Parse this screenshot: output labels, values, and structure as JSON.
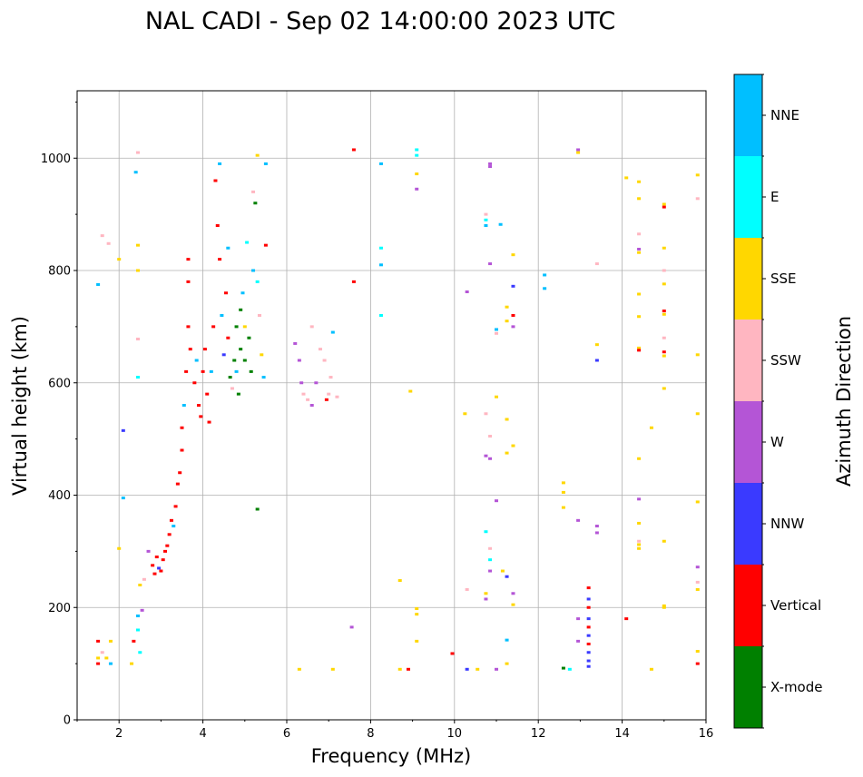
{
  "chart_data": {
    "type": "scatter",
    "title": "NAL CADI - Sep 02 14:00:00 2023 UTC",
    "xlabel": "Frequency (MHz)",
    "ylabel": "Virtual height (km)",
    "xlim": [
      1,
      16
    ],
    "ylim": [
      0,
      1120
    ],
    "xticks": [
      2,
      4,
      6,
      8,
      10,
      12,
      14,
      16
    ],
    "yticks": [
      0,
      200,
      400,
      600,
      800,
      1000
    ],
    "grid": true,
    "colorbar": {
      "label": "Azimuth Direction",
      "categories": [
        {
          "name": "X-mode",
          "color": "#008000"
        },
        {
          "name": "Vertical",
          "color": "#ff0000"
        },
        {
          "name": "NNW",
          "color": "#3a3aff"
        },
        {
          "name": "W",
          "color": "#b455d6"
        },
        {
          "name": "SSW",
          "color": "#ffb6c1"
        },
        {
          "name": "SSE",
          "color": "#ffd700"
        },
        {
          "name": "E",
          "color": "#00ffff"
        },
        {
          "name": "NNE",
          "color": "#00bfff"
        }
      ]
    },
    "points": [
      {
        "f": 1.5,
        "h": 100,
        "c": "Vertical"
      },
      {
        "f": 1.5,
        "h": 110,
        "c": "SSE"
      },
      {
        "f": 1.5,
        "h": 140,
        "c": "Vertical"
      },
      {
        "f": 1.6,
        "h": 120,
        "c": "SSW"
      },
      {
        "f": 1.7,
        "h": 110,
        "c": "SSE"
      },
      {
        "f": 1.8,
        "h": 140,
        "c": "SSE"
      },
      {
        "f": 1.8,
        "h": 100,
        "c": "NNE"
      },
      {
        "f": 1.5,
        "h": 775,
        "c": "NNE"
      },
      {
        "f": 1.6,
        "h": 862,
        "c": "SSW"
      },
      {
        "f": 1.75,
        "h": 848,
        "c": "SSW"
      },
      {
        "f": 2.0,
        "h": 820,
        "c": "SSE"
      },
      {
        "f": 2.0,
        "h": 305,
        "c": "SSE"
      },
      {
        "f": 2.1,
        "h": 395,
        "c": "NNE"
      },
      {
        "f": 2.1,
        "h": 515,
        "c": "NNW"
      },
      {
        "f": 2.3,
        "h": 100,
        "c": "SSE"
      },
      {
        "f": 2.35,
        "h": 140,
        "c": "Vertical"
      },
      {
        "f": 2.45,
        "h": 160,
        "c": "E"
      },
      {
        "f": 2.45,
        "h": 185,
        "c": "NNE"
      },
      {
        "f": 2.5,
        "h": 120,
        "c": "E"
      },
      {
        "f": 2.45,
        "h": 1010,
        "c": "SSW"
      },
      {
        "f": 2.4,
        "h": 975,
        "c": "NNE"
      },
      {
        "f": 2.45,
        "h": 845,
        "c": "SSE"
      },
      {
        "f": 2.45,
        "h": 800,
        "c": "SSE"
      },
      {
        "f": 2.45,
        "h": 678,
        "c": "SSW"
      },
      {
        "f": 2.45,
        "h": 610,
        "c": "E"
      },
      {
        "f": 2.5,
        "h": 240,
        "c": "SSE"
      },
      {
        "f": 2.55,
        "h": 195,
        "c": "W"
      },
      {
        "f": 2.6,
        "h": 250,
        "c": "SSW"
      },
      {
        "f": 2.7,
        "h": 300,
        "c": "W"
      },
      {
        "f": 2.8,
        "h": 275,
        "c": "Vertical"
      },
      {
        "f": 2.85,
        "h": 260,
        "c": "Vertical"
      },
      {
        "f": 2.9,
        "h": 290,
        "c": "Vertical"
      },
      {
        "f": 2.95,
        "h": 270,
        "c": "NNW"
      },
      {
        "f": 3.0,
        "h": 265,
        "c": "Vertical"
      },
      {
        "f": 3.05,
        "h": 285,
        "c": "Vertical"
      },
      {
        "f": 3.1,
        "h": 300,
        "c": "Vertical"
      },
      {
        "f": 3.15,
        "h": 310,
        "c": "Vertical"
      },
      {
        "f": 3.2,
        "h": 330,
        "c": "Vertical"
      },
      {
        "f": 3.25,
        "h": 355,
        "c": "Vertical"
      },
      {
        "f": 3.3,
        "h": 345,
        "c": "NNE"
      },
      {
        "f": 3.35,
        "h": 380,
        "c": "Vertical"
      },
      {
        "f": 3.4,
        "h": 420,
        "c": "Vertical"
      },
      {
        "f": 3.45,
        "h": 440,
        "c": "Vertical"
      },
      {
        "f": 3.5,
        "h": 480,
        "c": "Vertical"
      },
      {
        "f": 3.5,
        "h": 520,
        "c": "Vertical"
      },
      {
        "f": 3.55,
        "h": 560,
        "c": "NNE"
      },
      {
        "f": 3.6,
        "h": 620,
        "c": "Vertical"
      },
      {
        "f": 3.65,
        "h": 700,
        "c": "Vertical"
      },
      {
        "f": 3.65,
        "h": 780,
        "c": "Vertical"
      },
      {
        "f": 3.65,
        "h": 820,
        "c": "Vertical"
      },
      {
        "f": 3.7,
        "h": 660,
        "c": "Vertical"
      },
      {
        "f": 3.8,
        "h": 600,
        "c": "Vertical"
      },
      {
        "f": 3.85,
        "h": 640,
        "c": "NNE"
      },
      {
        "f": 3.9,
        "h": 560,
        "c": "Vertical"
      },
      {
        "f": 3.95,
        "h": 540,
        "c": "Vertical"
      },
      {
        "f": 4.0,
        "h": 620,
        "c": "Vertical"
      },
      {
        "f": 4.05,
        "h": 660,
        "c": "Vertical"
      },
      {
        "f": 4.1,
        "h": 580,
        "c": "Vertical"
      },
      {
        "f": 4.15,
        "h": 530,
        "c": "Vertical"
      },
      {
        "f": 4.2,
        "h": 620,
        "c": "NNE"
      },
      {
        "f": 4.25,
        "h": 700,
        "c": "Vertical"
      },
      {
        "f": 4.3,
        "h": 960,
        "c": "Vertical"
      },
      {
        "f": 4.35,
        "h": 880,
        "c": "Vertical"
      },
      {
        "f": 4.4,
        "h": 990,
        "c": "NNE"
      },
      {
        "f": 4.4,
        "h": 820,
        "c": "Vertical"
      },
      {
        "f": 4.45,
        "h": 720,
        "c": "NNE"
      },
      {
        "f": 4.5,
        "h": 650,
        "c": "NNW"
      },
      {
        "f": 4.55,
        "h": 760,
        "c": "Vertical"
      },
      {
        "f": 4.6,
        "h": 680,
        "c": "Vertical"
      },
      {
        "f": 4.6,
        "h": 840,
        "c": "NNE"
      },
      {
        "f": 4.65,
        "h": 610,
        "c": "X-mode"
      },
      {
        "f": 4.7,
        "h": 590,
        "c": "SSW"
      },
      {
        "f": 4.75,
        "h": 640,
        "c": "X-mode"
      },
      {
        "f": 4.8,
        "h": 700,
        "c": "X-mode"
      },
      {
        "f": 4.8,
        "h": 620,
        "c": "NNE"
      },
      {
        "f": 4.85,
        "h": 580,
        "c": "X-mode"
      },
      {
        "f": 4.9,
        "h": 730,
        "c": "X-mode"
      },
      {
        "f": 4.9,
        "h": 660,
        "c": "X-mode"
      },
      {
        "f": 4.95,
        "h": 760,
        "c": "NNE"
      },
      {
        "f": 5.0,
        "h": 640,
        "c": "X-mode"
      },
      {
        "f": 5.0,
        "h": 700,
        "c": "SSE"
      },
      {
        "f": 5.05,
        "h": 850,
        "c": "E"
      },
      {
        "f": 5.1,
        "h": 680,
        "c": "X-mode"
      },
      {
        "f": 5.15,
        "h": 620,
        "c": "X-mode"
      },
      {
        "f": 5.2,
        "h": 800,
        "c": "NNE"
      },
      {
        "f": 5.2,
        "h": 940,
        "c": "SSW"
      },
      {
        "f": 5.25,
        "h": 920,
        "c": "X-mode"
      },
      {
        "f": 5.3,
        "h": 780,
        "c": "E"
      },
      {
        "f": 5.3,
        "h": 1005,
        "c": "SSE"
      },
      {
        "f": 5.35,
        "h": 720,
        "c": "SSW"
      },
      {
        "f": 5.4,
        "h": 650,
        "c": "SSE"
      },
      {
        "f": 5.45,
        "h": 610,
        "c": "NNE"
      },
      {
        "f": 5.5,
        "h": 990,
        "c": "NNE"
      },
      {
        "f": 5.5,
        "h": 845,
        "c": "Vertical"
      },
      {
        "f": 5.3,
        "h": 375,
        "c": "X-mode"
      },
      {
        "f": 6.2,
        "h": 670,
        "c": "W"
      },
      {
        "f": 6.3,
        "h": 640,
        "c": "W"
      },
      {
        "f": 6.35,
        "h": 600,
        "c": "W"
      },
      {
        "f": 6.4,
        "h": 580,
        "c": "SSW"
      },
      {
        "f": 6.5,
        "h": 570,
        "c": "SSW"
      },
      {
        "f": 6.6,
        "h": 700,
        "c": "SSW"
      },
      {
        "f": 6.7,
        "h": 600,
        "c": "W"
      },
      {
        "f": 6.8,
        "h": 660,
        "c": "SSW"
      },
      {
        "f": 6.9,
        "h": 640,
        "c": "SSW"
      },
      {
        "f": 7.0,
        "h": 580,
        "c": "SSW"
      },
      {
        "f": 7.05,
        "h": 610,
        "c": "SSW"
      },
      {
        "f": 7.1,
        "h": 690,
        "c": "NNE"
      },
      {
        "f": 7.2,
        "h": 575,
        "c": "SSW"
      },
      {
        "f": 6.6,
        "h": 560,
        "c": "W"
      },
      {
        "f": 6.95,
        "h": 570,
        "c": "Vertical"
      },
      {
        "f": 7.1,
        "h": 90,
        "c": "SSE"
      },
      {
        "f": 6.3,
        "h": 90,
        "c": "SSE"
      },
      {
        "f": 7.55,
        "h": 165,
        "c": "W"
      },
      {
        "f": 7.6,
        "h": 1015,
        "c": "Vertical"
      },
      {
        "f": 7.6,
        "h": 780,
        "c": "Vertical"
      },
      {
        "f": 8.25,
        "h": 990,
        "c": "NNE"
      },
      {
        "f": 8.25,
        "h": 840,
        "c": "E"
      },
      {
        "f": 8.25,
        "h": 810,
        "c": "NNE"
      },
      {
        "f": 8.25,
        "h": 720,
        "c": "E"
      },
      {
        "f": 8.7,
        "h": 248,
        "c": "SSE"
      },
      {
        "f": 8.7,
        "h": 90,
        "c": "SSE"
      },
      {
        "f": 8.9,
        "h": 90,
        "c": "Vertical"
      },
      {
        "f": 8.95,
        "h": 585,
        "c": "SSE"
      },
      {
        "f": 9.1,
        "h": 1015,
        "c": "E"
      },
      {
        "f": 9.1,
        "h": 1005,
        "c": "E"
      },
      {
        "f": 9.1,
        "h": 972,
        "c": "SSE"
      },
      {
        "f": 9.1,
        "h": 945,
        "c": "W"
      },
      {
        "f": 9.1,
        "h": 198,
        "c": "SSE"
      },
      {
        "f": 9.1,
        "h": 188,
        "c": "SSE"
      },
      {
        "f": 9.1,
        "h": 140,
        "c": "SSE"
      },
      {
        "f": 9.95,
        "h": 118,
        "c": "Vertical"
      },
      {
        "f": 10.25,
        "h": 545,
        "c": "SSE"
      },
      {
        "f": 10.3,
        "h": 232,
        "c": "SSW"
      },
      {
        "f": 10.3,
        "h": 90,
        "c": "NNW"
      },
      {
        "f": 10.3,
        "h": 762,
        "c": "W"
      },
      {
        "f": 10.55,
        "h": 90,
        "c": "SSE"
      },
      {
        "f": 10.75,
        "h": 900,
        "c": "SSW"
      },
      {
        "f": 10.75,
        "h": 890,
        "c": "E"
      },
      {
        "f": 10.75,
        "h": 880,
        "c": "NNE"
      },
      {
        "f": 10.75,
        "h": 545,
        "c": "SSW"
      },
      {
        "f": 10.75,
        "h": 470,
        "c": "W"
      },
      {
        "f": 10.75,
        "h": 335,
        "c": "E"
      },
      {
        "f": 10.75,
        "h": 225,
        "c": "SSE"
      },
      {
        "f": 10.75,
        "h": 215,
        "c": "W"
      },
      {
        "f": 10.85,
        "h": 990,
        "c": "W"
      },
      {
        "f": 10.85,
        "h": 985,
        "c": "W"
      },
      {
        "f": 10.85,
        "h": 812,
        "c": "W"
      },
      {
        "f": 10.85,
        "h": 505,
        "c": "SSW"
      },
      {
        "f": 10.85,
        "h": 465,
        "c": "W"
      },
      {
        "f": 10.85,
        "h": 305,
        "c": "SSW"
      },
      {
        "f": 10.85,
        "h": 285,
        "c": "E"
      },
      {
        "f": 10.85,
        "h": 265,
        "c": "W"
      },
      {
        "f": 11.0,
        "h": 695,
        "c": "NNE"
      },
      {
        "f": 11.0,
        "h": 688,
        "c": "SSW"
      },
      {
        "f": 11.0,
        "h": 575,
        "c": "SSE"
      },
      {
        "f": 11.0,
        "h": 390,
        "c": "W"
      },
      {
        "f": 11.0,
        "h": 90,
        "c": "W"
      },
      {
        "f": 11.1,
        "h": 882,
        "c": "NNE"
      },
      {
        "f": 11.15,
        "h": 265,
        "c": "SSE"
      },
      {
        "f": 11.25,
        "h": 735,
        "c": "SSE"
      },
      {
        "f": 11.25,
        "h": 710,
        "c": "SSE"
      },
      {
        "f": 11.25,
        "h": 535,
        "c": "SSE"
      },
      {
        "f": 11.25,
        "h": 475,
        "c": "SSE"
      },
      {
        "f": 11.25,
        "h": 255,
        "c": "NNW"
      },
      {
        "f": 11.25,
        "h": 142,
        "c": "NNE"
      },
      {
        "f": 11.25,
        "h": 100,
        "c": "SSE"
      },
      {
        "f": 11.4,
        "h": 828,
        "c": "SSE"
      },
      {
        "f": 11.4,
        "h": 772,
        "c": "NNW"
      },
      {
        "f": 11.4,
        "h": 720,
        "c": "Vertical"
      },
      {
        "f": 11.4,
        "h": 700,
        "c": "W"
      },
      {
        "f": 11.4,
        "h": 488,
        "c": "SSE"
      },
      {
        "f": 11.4,
        "h": 225,
        "c": "W"
      },
      {
        "f": 11.4,
        "h": 205,
        "c": "SSE"
      },
      {
        "f": 12.15,
        "h": 792,
        "c": "NNE"
      },
      {
        "f": 12.15,
        "h": 768,
        "c": "NNE"
      },
      {
        "f": 12.6,
        "h": 422,
        "c": "SSE"
      },
      {
        "f": 12.6,
        "h": 405,
        "c": "SSE"
      },
      {
        "f": 12.6,
        "h": 378,
        "c": "SSE"
      },
      {
        "f": 12.6,
        "h": 92,
        "c": "X-mode"
      },
      {
        "f": 12.75,
        "h": 90,
        "c": "E"
      },
      {
        "f": 12.95,
        "h": 1015,
        "c": "W"
      },
      {
        "f": 12.95,
        "h": 1010,
        "c": "SSE"
      },
      {
        "f": 12.95,
        "h": 355,
        "c": "W"
      },
      {
        "f": 12.95,
        "h": 180,
        "c": "W"
      },
      {
        "f": 12.95,
        "h": 140,
        "c": "W"
      },
      {
        "f": 13.2,
        "h": 235,
        "c": "Vertical"
      },
      {
        "f": 13.2,
        "h": 215,
        "c": "NNW"
      },
      {
        "f": 13.2,
        "h": 200,
        "c": "Vertical"
      },
      {
        "f": 13.2,
        "h": 180,
        "c": "NNW"
      },
      {
        "f": 13.2,
        "h": 165,
        "c": "Vertical"
      },
      {
        "f": 13.2,
        "h": 150,
        "c": "NNW"
      },
      {
        "f": 13.2,
        "h": 135,
        "c": "Vertical"
      },
      {
        "f": 13.2,
        "h": 120,
        "c": "NNW"
      },
      {
        "f": 13.2,
        "h": 105,
        "c": "NNW"
      },
      {
        "f": 13.2,
        "h": 95,
        "c": "NNW"
      },
      {
        "f": 13.4,
        "h": 668,
        "c": "SSE"
      },
      {
        "f": 13.4,
        "h": 640,
        "c": "NNW"
      },
      {
        "f": 13.4,
        "h": 345,
        "c": "W"
      },
      {
        "f": 13.4,
        "h": 333,
        "c": "W"
      },
      {
        "f": 13.4,
        "h": 812,
        "c": "SSW"
      },
      {
        "f": 14.1,
        "h": 965,
        "c": "SSE"
      },
      {
        "f": 14.1,
        "h": 180,
        "c": "Vertical"
      },
      {
        "f": 14.4,
        "h": 958,
        "c": "SSE"
      },
      {
        "f": 14.4,
        "h": 928,
        "c": "SSE"
      },
      {
        "f": 14.4,
        "h": 865,
        "c": "SSW"
      },
      {
        "f": 14.4,
        "h": 838,
        "c": "W"
      },
      {
        "f": 14.4,
        "h": 832,
        "c": "SSE"
      },
      {
        "f": 14.4,
        "h": 758,
        "c": "SSE"
      },
      {
        "f": 14.4,
        "h": 718,
        "c": "SSE"
      },
      {
        "f": 14.4,
        "h": 662,
        "c": "SSE"
      },
      {
        "f": 14.4,
        "h": 658,
        "c": "Vertical"
      },
      {
        "f": 14.4,
        "h": 465,
        "c": "SSE"
      },
      {
        "f": 14.4,
        "h": 393,
        "c": "W"
      },
      {
        "f": 14.4,
        "h": 350,
        "c": "SSE"
      },
      {
        "f": 14.4,
        "h": 318,
        "c": "SSW"
      },
      {
        "f": 14.4,
        "h": 312,
        "c": "SSE"
      },
      {
        "f": 14.4,
        "h": 305,
        "c": "SSE"
      },
      {
        "f": 14.7,
        "h": 520,
        "c": "SSE"
      },
      {
        "f": 14.7,
        "h": 90,
        "c": "SSE"
      },
      {
        "f": 15.0,
        "h": 918,
        "c": "SSE"
      },
      {
        "f": 15.0,
        "h": 913,
        "c": "Vertical"
      },
      {
        "f": 15.0,
        "h": 840,
        "c": "SSE"
      },
      {
        "f": 15.0,
        "h": 800,
        "c": "SSW"
      },
      {
        "f": 15.0,
        "h": 776,
        "c": "SSE"
      },
      {
        "f": 15.0,
        "h": 728,
        "c": "Vertical"
      },
      {
        "f": 15.0,
        "h": 722,
        "c": "SSE"
      },
      {
        "f": 15.0,
        "h": 680,
        "c": "SSW"
      },
      {
        "f": 15.0,
        "h": 655,
        "c": "Vertical"
      },
      {
        "f": 15.0,
        "h": 648,
        "c": "SSE"
      },
      {
        "f": 15.0,
        "h": 590,
        "c": "SSE"
      },
      {
        "f": 15.0,
        "h": 318,
        "c": "SSE"
      },
      {
        "f": 15.0,
        "h": 203,
        "c": "SSE"
      },
      {
        "f": 15.0,
        "h": 200,
        "c": "SSE"
      },
      {
        "f": 15.8,
        "h": 970,
        "c": "SSE"
      },
      {
        "f": 15.8,
        "h": 928,
        "c": "SSW"
      },
      {
        "f": 15.8,
        "h": 650,
        "c": "SSE"
      },
      {
        "f": 15.8,
        "h": 545,
        "c": "SSE"
      },
      {
        "f": 15.8,
        "h": 388,
        "c": "SSE"
      },
      {
        "f": 15.8,
        "h": 272,
        "c": "W"
      },
      {
        "f": 15.8,
        "h": 245,
        "c": "SSW"
      },
      {
        "f": 15.8,
        "h": 232,
        "c": "SSE"
      },
      {
        "f": 15.8,
        "h": 122,
        "c": "SSE"
      },
      {
        "f": 15.8,
        "h": 100,
        "c": "Vertical"
      }
    ]
  }
}
